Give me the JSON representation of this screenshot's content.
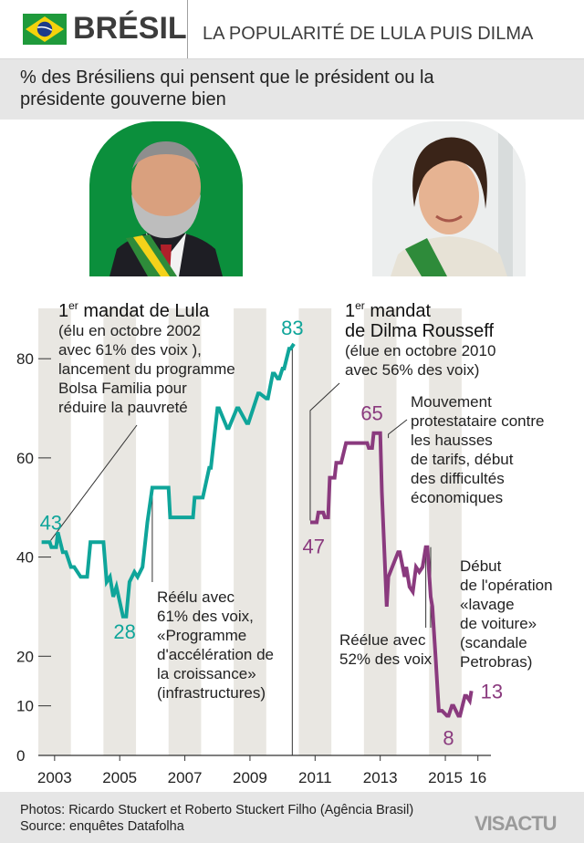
{
  "header": {
    "country": "BRÉSIL",
    "headline": "LA POPULARITÉ DE LULA PUIS DILMA",
    "subtitle": "% des Brésiliens qui pensent que le président ou la présidente gouverne bien",
    "flag_icon": "brazil-flag-icon"
  },
  "colors": {
    "lula": "#0fa59a",
    "dilma": "#8a3a7e",
    "band": "#e9e7e2",
    "axis": "#333333"
  },
  "chart_data": {
    "type": "line",
    "ylim": [
      0,
      85
    ],
    "y_ticks": [
      "0",
      "10",
      "20",
      "40",
      "60",
      "80"
    ],
    "y_tick_values": [
      0,
      10,
      20,
      40,
      60,
      80
    ],
    "x_range": [
      2002.5,
      2016.4
    ],
    "x_labels": [
      "2003",
      "2005",
      "2007",
      "2009",
      "2011",
      "2013",
      "2015",
      "16"
    ],
    "x_label_values": [
      2003,
      2005,
      2007,
      2009,
      2011,
      2013,
      2015,
      2016
    ],
    "series": [
      {
        "x": [
          2002.6,
          2002.85,
          2002.9,
          2003.05,
          2003.1,
          2003.25,
          2003.35,
          2003.5,
          2003.6,
          2003.8,
          2004.0,
          2004.1,
          2004.5,
          2004.6,
          2004.7,
          2004.8,
          2004.9,
          2005.1,
          2005.2,
          2005.3,
          2005.45,
          2005.55,
          2005.7,
          2005.85,
          2006.0,
          2006.1,
          2006.5,
          2006.55,
          2006.6,
          2007.25,
          2007.3,
          2007.5,
          2007.55,
          2007.75,
          2007.8,
          2008.0,
          2008.05,
          2008.3,
          2008.35,
          2008.6,
          2008.65,
          2008.9,
          2008.95,
          2009.25,
          2009.3,
          2009.5,
          2009.55,
          2009.7,
          2009.75,
          2009.85,
          2009.9,
          2010.0,
          2010.05,
          2010.2,
          2010.25,
          2010.35
        ],
        "values": [
          43,
          43,
          42,
          42,
          45,
          41,
          41,
          38,
          38,
          36,
          36,
          43,
          43,
          35,
          36,
          32,
          34,
          28,
          28,
          35,
          37,
          36,
          38,
          47,
          54,
          54,
          54,
          48,
          48,
          48,
          52,
          52,
          52,
          58,
          58,
          70,
          70,
          66,
          66,
          70,
          70,
          67,
          67,
          73,
          73,
          72,
          72,
          77,
          77,
          76,
          76,
          78,
          78,
          82,
          82,
          83
        ]
      },
      {
        "x": [
          2010.85,
          2011.05,
          2011.1,
          2011.25,
          2011.3,
          2011.4,
          2011.45,
          2011.6,
          2011.65,
          2011.75,
          2011.8,
          2011.95,
          2012.0,
          2012.6,
          2012.65,
          2012.75,
          2012.8,
          2012.9,
          2013.0,
          2013.05,
          2013.2,
          2013.25,
          2013.55,
          2013.6,
          2013.75,
          2013.8,
          2013.9,
          2014.0,
          2014.1,
          2014.2,
          2014.3,
          2014.4,
          2014.45,
          2014.55,
          2014.6,
          2014.7,
          2014.8,
          2014.9,
          2015.05,
          2015.1,
          2015.2,
          2015.25,
          2015.4,
          2015.45,
          2015.6,
          2015.65,
          2015.75,
          2015.8
        ],
        "values": [
          47,
          47,
          49,
          49,
          48,
          48,
          56,
          56,
          59,
          59,
          59,
          63,
          63,
          63,
          62,
          62,
          65,
          65,
          65,
          53,
          30,
          36,
          41,
          41,
          36,
          38,
          34,
          33,
          38,
          37,
          38,
          42,
          42,
          32,
          30,
          20,
          9,
          9,
          8,
          8,
          10,
          10,
          8,
          8,
          12,
          12,
          11,
          13
        ]
      }
    ],
    "point_labels": [
      {
        "value": "43",
        "x": 2002.6,
        "y": 43
      },
      {
        "value": "28",
        "x": 2005.2,
        "y": 28
      },
      {
        "value": "83",
        "x": 2010.35,
        "y": 83
      },
      {
        "value": "47",
        "x": 2010.95,
        "y": 47
      },
      {
        "value": "65",
        "x": 2012.85,
        "y": 65
      },
      {
        "value": "8",
        "x": 2015.15,
        "y": 8
      },
      {
        "value": "13",
        "x": 2015.8,
        "y": 13
      }
    ],
    "annotations": {
      "lula_title_pre": "1",
      "lula_title_sup": "er",
      "lula_title_post": " mandat de Lula",
      "lula_lines": [
        "(élu en octobre 2002",
        "avec 61% des voix ),",
        "lancement du programme",
        "Bolsa Familia pour",
        "réduire la pauvreté"
      ],
      "reelu_lines": [
        "Réélu avec",
        "61% des voix,",
        "«Programme",
        "d'accélération de",
        "la croissance»",
        "(infrastructures)"
      ],
      "dilma_title_pre": "1",
      "dilma_title_sup": "er",
      "dilma_title_post": " mandat",
      "dilma_title_line2": "de Dilma Rousseff",
      "dilma_lines": [
        "(élue en octobre 2010",
        "avec 56% des voix)"
      ],
      "mouvement_lines": [
        "Mouvement",
        "protestataire contre",
        "les hausses",
        "de tarifs, début",
        "des difficultés",
        "économiques"
      ],
      "reelue_lines": [
        "Réélue avec",
        "52% des voix"
      ],
      "lavage_lines": [
        "Début",
        "de l'opération",
        "«lavage",
        "de voiture»",
        "(scandale",
        "Petrobras)"
      ]
    }
  },
  "footer": {
    "credit_line1": "Photos: Ricardo Stuckert et Roberto Stuckert Filho (Agência Brasil)",
    "credit_line2": "Source: enquêtes Datafolha",
    "logo": "VISACTU"
  }
}
